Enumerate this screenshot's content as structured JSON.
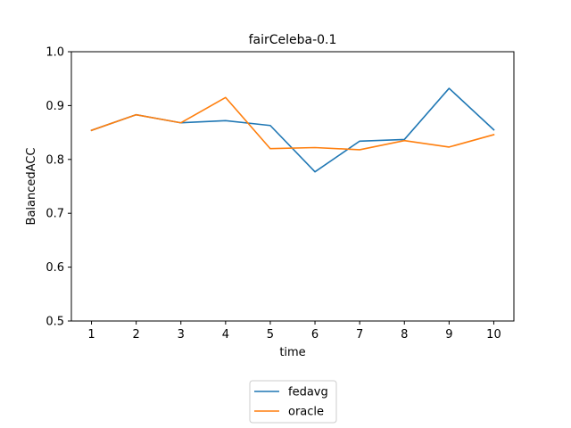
{
  "chart_data": {
    "type": "line",
    "title": "fairCeleba-0.1",
    "xlabel": "time",
    "ylabel": "BalancedACC",
    "x": [
      1,
      2,
      3,
      4,
      5,
      6,
      7,
      8,
      9,
      10
    ],
    "xticks": [
      "1",
      "2",
      "3",
      "4",
      "5",
      "6",
      "7",
      "8",
      "9",
      "10"
    ],
    "ylim": [
      0.5,
      1.0
    ],
    "yticks": [
      "0.5",
      "0.6",
      "0.7",
      "0.8",
      "0.9",
      "1.0"
    ],
    "grid": false,
    "legend_position": "bottom-center, outside plot",
    "series": [
      {
        "name": "fedavg",
        "color": "#1f77b4",
        "values": [
          0.854,
          0.883,
          0.868,
          0.872,
          0.863,
          0.777,
          0.834,
          0.837,
          0.932,
          0.855
        ]
      },
      {
        "name": "oracle",
        "color": "#ff7f0e",
        "values": [
          0.854,
          0.883,
          0.868,
          0.915,
          0.82,
          0.822,
          0.818,
          0.835,
          0.823,
          0.846
        ]
      }
    ]
  }
}
